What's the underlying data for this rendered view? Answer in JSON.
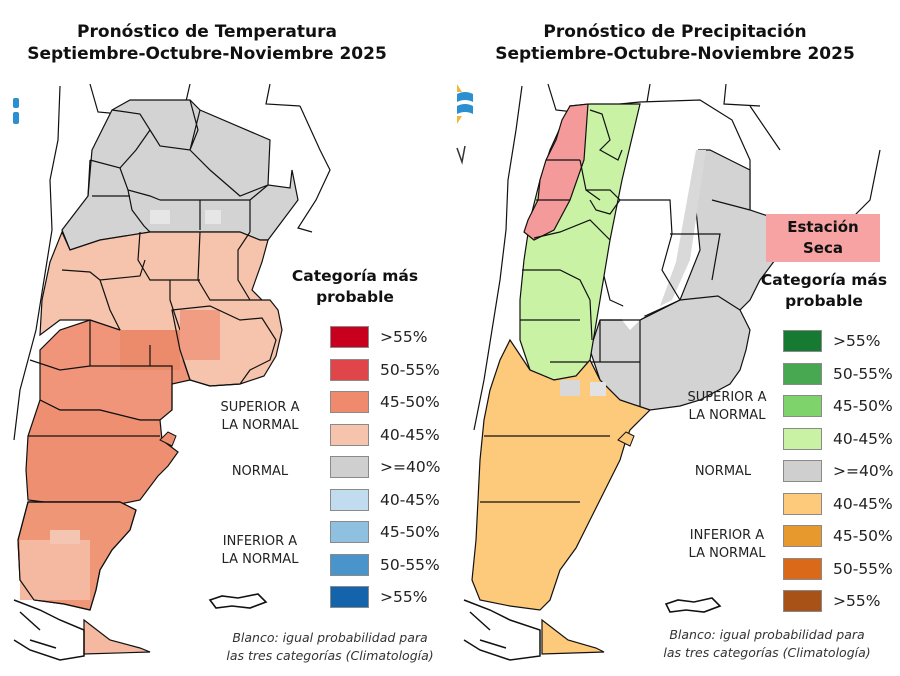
{
  "panels": {
    "temperature": {
      "title_line1": "Pronóstico de Temperatura",
      "title_line2": "Septiembre-Octubre-Noviembre 2025",
      "legend_title_line1": "Categoría más",
      "legend_title_line2": "probable",
      "groups": {
        "above": [
          "SUPERIOR A",
          "LA NORMAL"
        ],
        "normal": "NORMAL",
        "below": [
          "INFERIOR A",
          "LA NORMAL"
        ]
      },
      "legend": [
        {
          "label": ">55%",
          "color": "#c8001e",
          "category": "above"
        },
        {
          "label": "50-55%",
          "color": "#e0454a",
          "category": "above"
        },
        {
          "label": "45-50%",
          "color": "#f08a6c",
          "category": "above"
        },
        {
          "label": "40-45%",
          "color": "#f6c3ac",
          "category": "above"
        },
        {
          "label": ">=40%",
          "color": "#cfcfcf",
          "category": "normal"
        },
        {
          "label": "40-45%",
          "color": "#c2dcef",
          "category": "below"
        },
        {
          "label": "45-50%",
          "color": "#8fc0e0",
          "category": "below"
        },
        {
          "label": "50-55%",
          "color": "#4a94cc",
          "category": "below"
        },
        {
          "label": ">55%",
          "color": "#1464ab",
          "category": "below"
        }
      ],
      "note_line1": "Blanco: igual probabilidad para",
      "note_line2": "las tres categorías (Climatología)",
      "map_regions": [
        {
          "region": "north",
          "category": "normal",
          "color": "#d3d3d3"
        },
        {
          "region": "center",
          "category": "above 40-45%",
          "color": "#f6c3ac"
        },
        {
          "region": "la-pampa-rio-negro-neuquen",
          "category": "above 45-50%",
          "color": "#f0957a"
        },
        {
          "region": "chubut",
          "category": "above 45-50%",
          "color": "#ee8f72"
        },
        {
          "region": "santa-cruz-south",
          "category": "above 40-45%",
          "color": "#f4b9a0"
        },
        {
          "region": "tierra-del-fuego",
          "category": "above 40-45%",
          "color": "#f4b9a0"
        }
      ]
    },
    "precipitation": {
      "title_line1": "Pronóstico de Precipitación",
      "title_line2": "Septiembre-Octubre-Noviembre 2025",
      "badge_line1": "Estación",
      "badge_line2": "Seca",
      "badge_color": "#f7a3a3",
      "legend_title_line1": "Categoría más",
      "legend_title_line2": "probable",
      "groups": {
        "above": [
          "SUPERIOR A",
          "LA NORMAL"
        ],
        "normal": "NORMAL",
        "below": [
          "INFERIOR A",
          "LA NORMAL"
        ]
      },
      "legend": [
        {
          "label": ">55%",
          "color": "#177a33",
          "category": "above"
        },
        {
          "label": "50-55%",
          "color": "#48a852",
          "category": "above"
        },
        {
          "label": "45-50%",
          "color": "#7ed36a",
          "category": "above"
        },
        {
          "label": "40-45%",
          "color": "#c9f2a4",
          "category": "above"
        },
        {
          "label": ">=40%",
          "color": "#cfcfcf",
          "category": "normal"
        },
        {
          "label": "40-45%",
          "color": "#fdc97a",
          "category": "below"
        },
        {
          "label": "45-50%",
          "color": "#e8992e",
          "category": "below"
        },
        {
          "label": "50-55%",
          "color": "#da6a1a",
          "category": "below"
        },
        {
          "label": ">55%",
          "color": "#a85218",
          "category": "below"
        }
      ],
      "note_line1": "Blanco: igual probabilidad para",
      "note_line2": "las tres categorías (Climatología)",
      "map_regions": [
        {
          "region": "northwest-andes",
          "category": "dry season",
          "color": "#f59a9a"
        },
        {
          "region": "northwest-center",
          "category": "above 40-45%",
          "color": "#c9f2a4"
        },
        {
          "region": "north-center",
          "category": "climatology",
          "color": "#ffffff"
        },
        {
          "region": "northeast-east",
          "category": "normal",
          "color": "#d3d3d3"
        },
        {
          "region": "patagonia",
          "category": "below 40-45%",
          "color": "#fdc97a"
        }
      ]
    }
  }
}
